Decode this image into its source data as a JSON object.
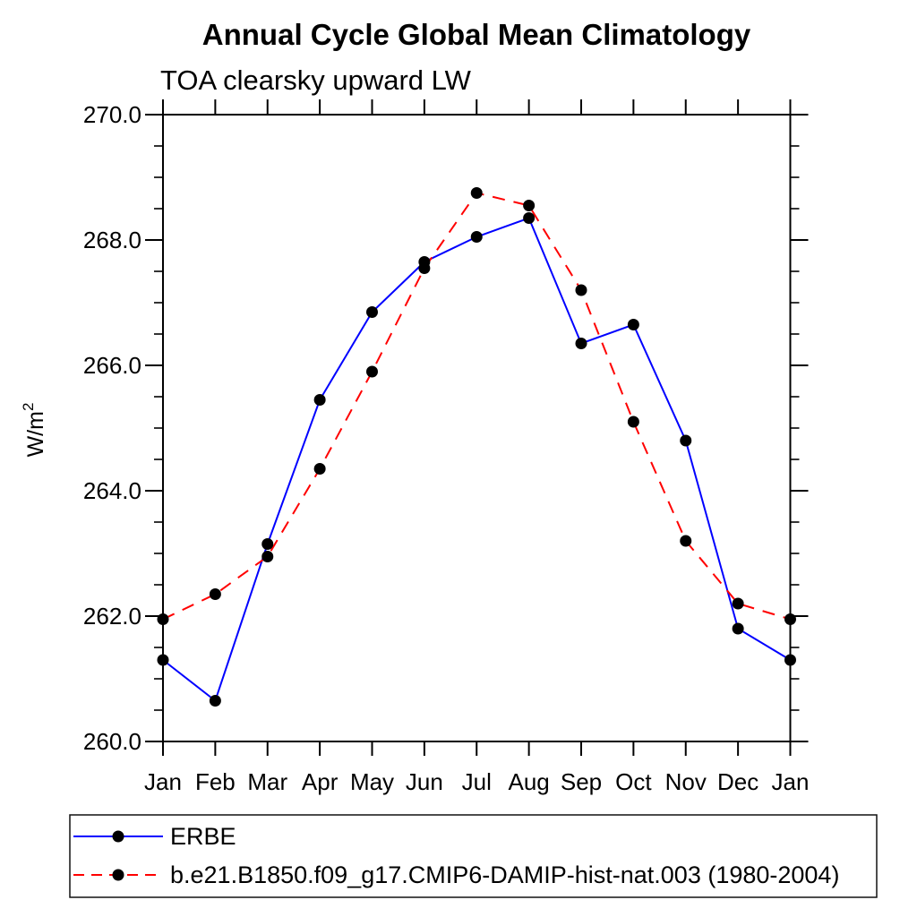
{
  "title": "Annual Cycle Global Mean Climatology",
  "subtitle": "TOA clearsky upward LW",
  "y_axis": {
    "label_base": "W/m",
    "label_exponent": "2"
  },
  "chart_data": {
    "type": "line",
    "title": "Annual Cycle Global Mean Climatology",
    "subtitle": "TOA clearsky upward LW",
    "ylabel": "W/m2",
    "xlabel": "",
    "x_categories": [
      "Jan",
      "Feb",
      "Mar",
      "Apr",
      "May",
      "Jun",
      "Jul",
      "Aug",
      "Sep",
      "Oct",
      "Nov",
      "Dec",
      "Jan"
    ],
    "ylim": [
      260.0,
      270.0
    ],
    "y_major_interval": 2.0,
    "y_minor_interval": 0.5,
    "y_tick_labels": [
      "260.0",
      "262.0",
      "264.0",
      "266.0",
      "268.0",
      "270.0"
    ],
    "grid": false,
    "legend_position": "bottom-left-box",
    "series": [
      {
        "name": "ERBE",
        "color": "#0000ff",
        "line_style": "solid",
        "marker": "filled-circle",
        "marker_color": "#000000",
        "values": [
          261.3,
          260.65,
          263.15,
          265.45,
          266.85,
          267.65,
          268.05,
          268.35,
          266.35,
          266.65,
          264.8,
          261.8,
          261.3
        ]
      },
      {
        "name": "b.e21.B1850.f09_g17.CMIP6-DAMIP-hist-nat.003 (1980-2004)",
        "color": "#ff0000",
        "line_style": "dashed",
        "marker": "filled-circle",
        "marker_color": "#000000",
        "values": [
          261.95,
          262.35,
          262.95,
          264.35,
          265.9,
          267.55,
          268.75,
          268.55,
          267.2,
          265.1,
          263.2,
          262.2,
          261.95
        ]
      }
    ]
  }
}
